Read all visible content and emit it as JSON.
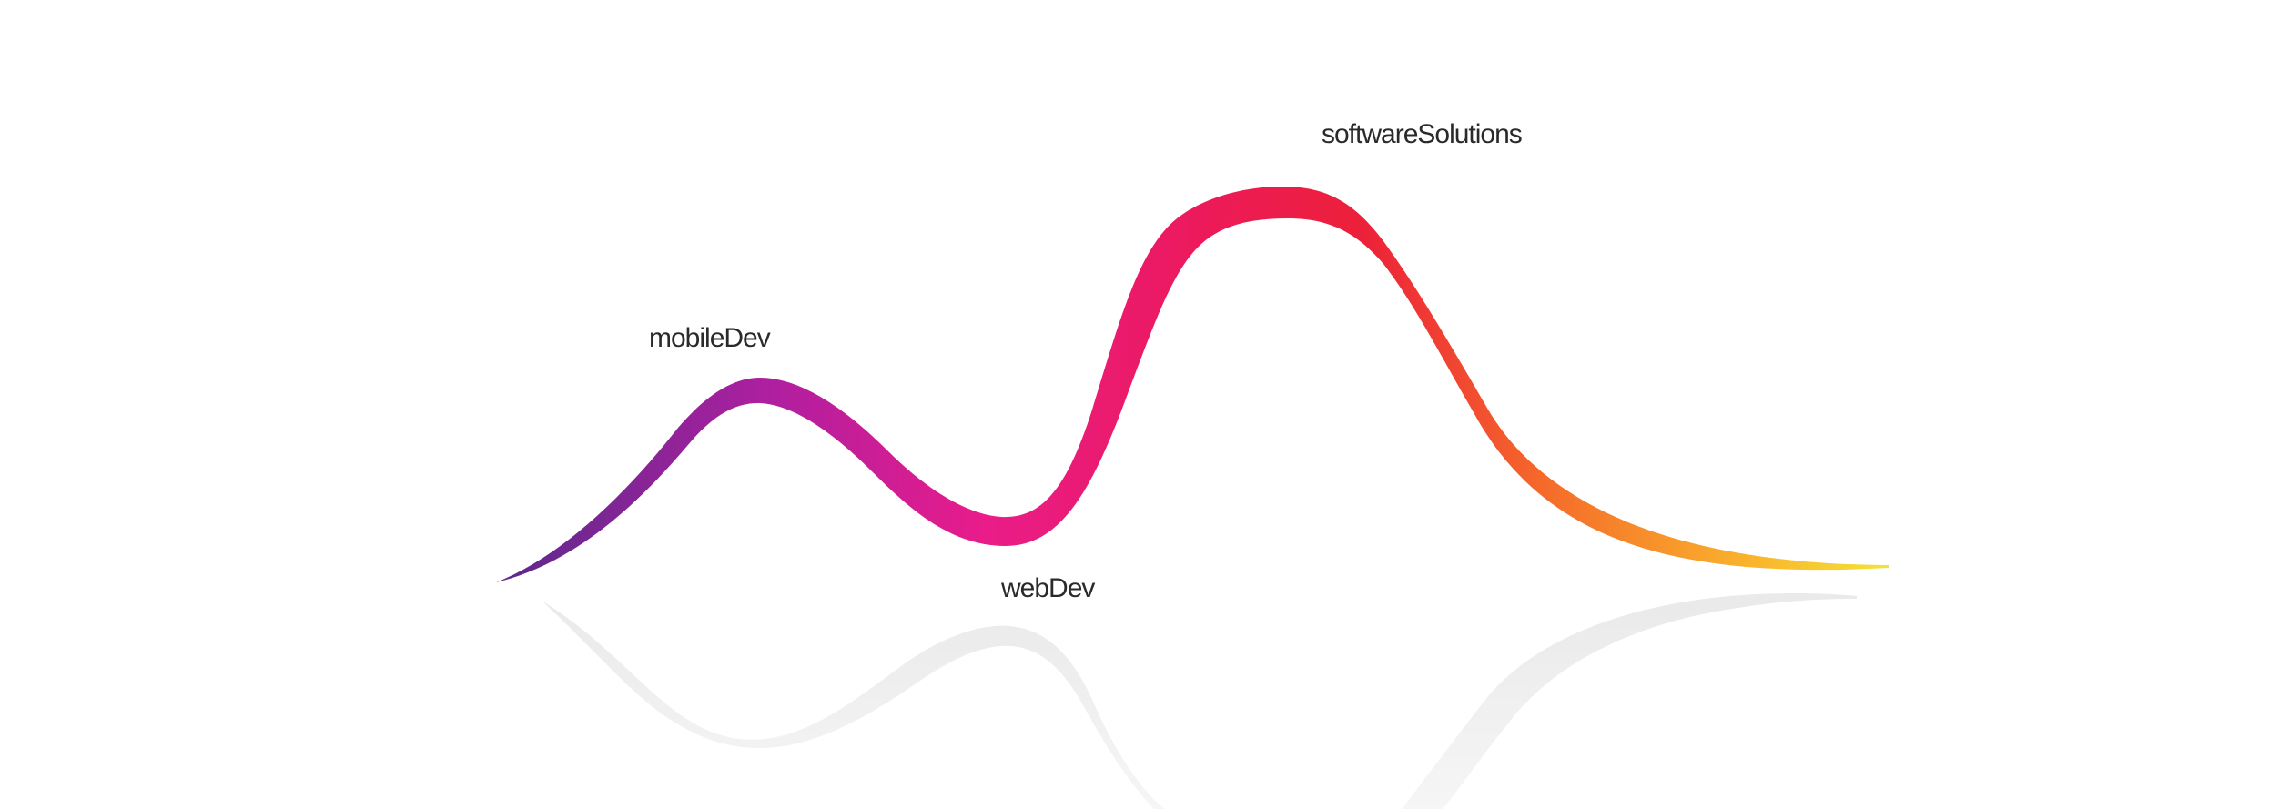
{
  "labels": {
    "mobile": "mobileDev",
    "web": "webDev",
    "software": "softwareSolutions"
  },
  "colors": {
    "gradient": [
      "#5b2a8c",
      "#c21d9e",
      "#ec1a7d",
      "#ec1e3f",
      "#f46a2c",
      "#f7a52a",
      "#f3e23a"
    ],
    "reflection": "#ececec",
    "text": "#2a2a2a",
    "background": "#ffffff"
  }
}
